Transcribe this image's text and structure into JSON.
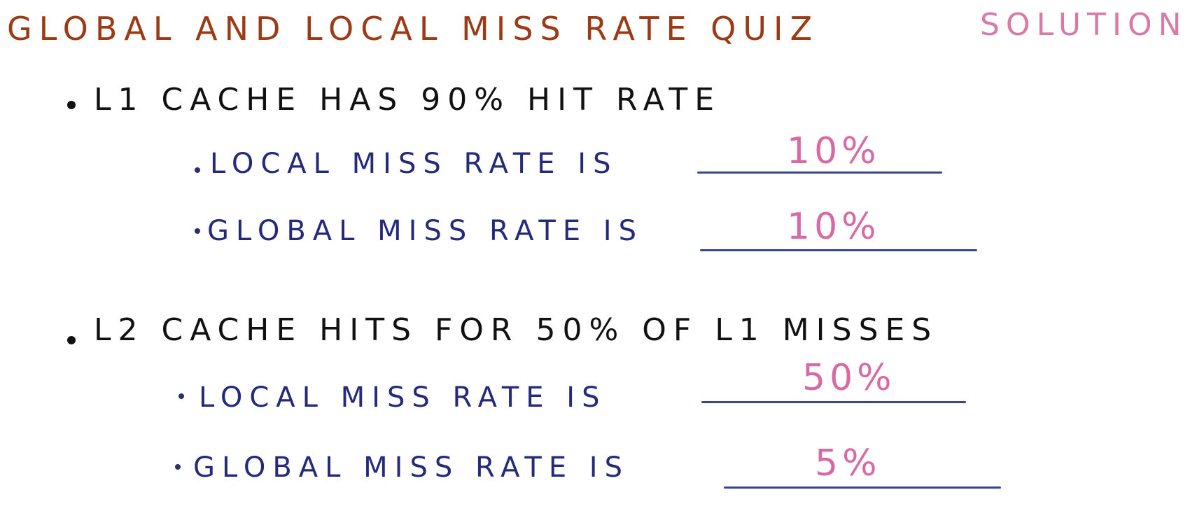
{
  "title": {
    "text": "GLOBAL AND LOCAL MISS RATE QUIZ",
    "solution_label": "SOLUTION"
  },
  "items": [
    {
      "text": "L1 CACHE HAS 90% HIT RATE",
      "subitems": [
        {
          "label": "LOCAL MISS RATE IS",
          "answer": "10%"
        },
        {
          "label": "GLOBAL MISS RATE IS",
          "answer": "10%"
        }
      ]
    },
    {
      "text": "L2 CACHE HITS FOR 50% OF L1 MISSES",
      "subitems": [
        {
          "label": "LOCAL MISS RATE IS",
          "answer": "50%"
        },
        {
          "label": "GLOBAL MISS RATE IS",
          "answer": "5%"
        }
      ]
    }
  ],
  "colors": {
    "title": "#9b3a14",
    "solution": "#d77aa6",
    "main_text": "#111111",
    "sub_text": "#24297a",
    "answer": "#d86aa3",
    "line": "#3b4491"
  }
}
